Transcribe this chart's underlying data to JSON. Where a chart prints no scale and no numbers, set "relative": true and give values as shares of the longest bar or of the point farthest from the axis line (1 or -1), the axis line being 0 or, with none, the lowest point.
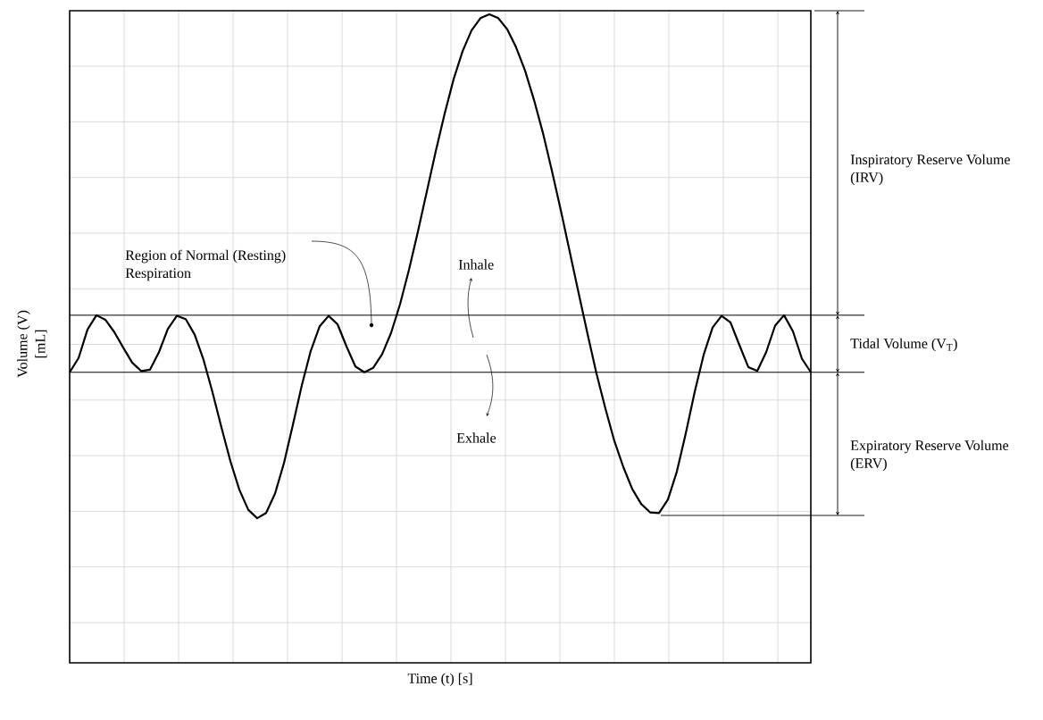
{
  "chart_data": {
    "type": "line",
    "relative": true,
    "color": "#000000",
    "grid": true,
    "tick_labels": false,
    "xlabel": "Time (t) [s]",
    "ylabel": "Volume (V) [mL]",
    "categories": [
      null,
      null,
      null,
      null,
      null,
      null,
      null,
      null,
      null,
      null,
      null,
      null,
      null,
      null,
      null,
      null,
      null,
      null,
      null,
      null,
      null,
      null,
      null,
      null,
      null,
      null,
      null,
      null,
      null,
      null,
      null,
      null,
      null,
      null,
      null,
      null,
      null,
      null,
      null,
      null,
      null,
      null,
      null,
      null,
      null,
      null,
      null,
      null,
      null,
      null,
      null,
      null,
      null,
      null,
      null,
      null,
      null,
      null,
      null,
      null,
      null,
      null,
      null,
      null,
      null,
      null,
      null,
      null,
      null,
      null,
      null,
      null,
      null,
      null,
      null,
      null,
      null,
      null,
      null,
      null,
      null,
      null,
      null,
      null
    ],
    "values": [
      0.448,
      0.47,
      0.514,
      0.536,
      0.529,
      0.51,
      0.486,
      0.463,
      0.45,
      0.452,
      0.479,
      0.515,
      0.535,
      0.53,
      0.506,
      0.467,
      0.417,
      0.363,
      0.311,
      0.267,
      0.236,
      0.223,
      0.231,
      0.261,
      0.308,
      0.367,
      0.428,
      0.481,
      0.519,
      0.535,
      0.522,
      0.488,
      0.457,
      0.448,
      0.455,
      0.476,
      0.509,
      0.553,
      0.606,
      0.665,
      0.727,
      0.789,
      0.847,
      0.9,
      0.943,
      0.975,
      0.994,
      1.0,
      0.994,
      0.977,
      0.949,
      0.913,
      0.868,
      0.817,
      0.759,
      0.698,
      0.634,
      0.57,
      0.507,
      0.446,
      0.392,
      0.342,
      0.302,
      0.268,
      0.245,
      0.232,
      0.231,
      0.252,
      0.295,
      0.354,
      0.418,
      0.475,
      0.517,
      0.535,
      0.525,
      0.49,
      0.456,
      0.45,
      0.479,
      0.52,
      0.536,
      0.511,
      0.469,
      0.448
    ],
    "ref_lines": [
      {
        "axis": "y",
        "value": 0.536,
        "color": "#000000"
      },
      {
        "axis": "y",
        "value": 0.448,
        "color": "#000000"
      }
    ],
    "annotations": [
      "Inspiratory Reserve Volume (IRV)",
      "Tidal Volume (V$_{T}$)",
      "Expiratory Reserve Volume (ERV)",
      "Region of Normal (Resting) Respiration",
      "Inhale",
      "Exhale"
    ]
  }
}
